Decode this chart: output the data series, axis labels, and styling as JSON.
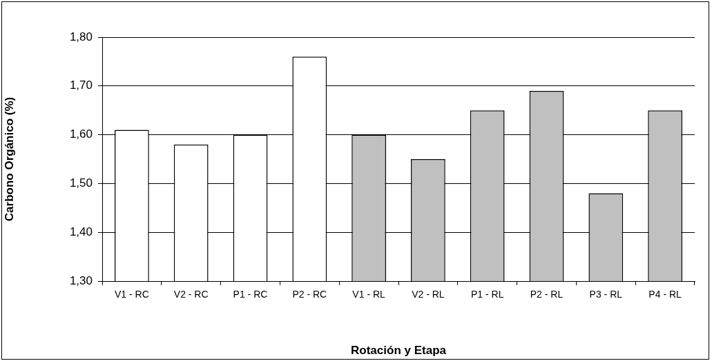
{
  "chart_data": {
    "type": "bar",
    "xlabel": "Rotación y Etapa",
    "ylabel": "Carbono Orgánico (%)",
    "categories": [
      "V1 - RC",
      "V2 - RC",
      "P1 - RC",
      "P2 - RC",
      "V1 - RL",
      "V2 - RL",
      "P1 - RL",
      "P2 - RL",
      "P3 - RL",
      "P4 - RL"
    ],
    "values": [
      1.61,
      1.58,
      1.6,
      1.76,
      1.6,
      1.55,
      1.65,
      1.69,
      1.48,
      1.65
    ],
    "colors": [
      "#ffffff",
      "#ffffff",
      "#ffffff",
      "#ffffff",
      "#c0c0c0",
      "#c0c0c0",
      "#c0c0c0",
      "#c0c0c0",
      "#c0c0c0",
      "#c0c0c0"
    ],
    "ylim": [
      1.3,
      1.8
    ],
    "yticks": [
      {
        "value": 1.3,
        "label": "1,30"
      },
      {
        "value": 1.4,
        "label": "1,40"
      },
      {
        "value": 1.5,
        "label": "1,50"
      },
      {
        "value": 1.6,
        "label": "1,60"
      },
      {
        "value": 1.7,
        "label": "1,70"
      },
      {
        "value": 1.8,
        "label": "1,80"
      }
    ],
    "grid": "y",
    "legend": false
  }
}
